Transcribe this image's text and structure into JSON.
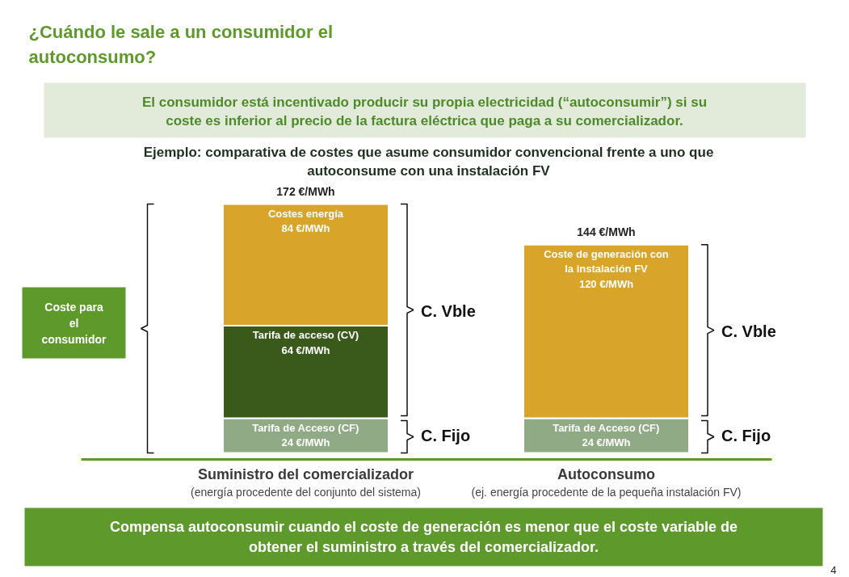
{
  "chart_data": {
    "type": "bar",
    "stacked": true,
    "title": "¿Cuándo le sale a un consumidor el autoconsumo?",
    "subtitle": "El consumidor está incentivado producir su propia electricidad (“autoconsumir”) si su coste es inferior al precio de la factura eléctrica que paga a su comercializador.",
    "categories": [
      "Suministro del comercializador",
      "Autoconsumo"
    ],
    "series": [
      {
        "name": "Tarifa de Acceso (CF)",
        "color": "#8faa84",
        "values": [
          24,
          24
        ],
        "value_labels": [
          "24 €/MWh",
          "24 €/MWh"
        ]
      },
      {
        "name": "Tarifa de acceso (CV)",
        "color": "#3a5a1c",
        "values": [
          64,
          null
        ],
        "value_labels": [
          "64 €/MWh",
          null
        ]
      },
      {
        "name": "Costes energía",
        "color": "#d8a42a",
        "values": [
          84,
          null
        ],
        "value_labels": [
          "84 €/MWh",
          null
        ]
      },
      {
        "name": "Coste de generación con la instalación FV",
        "color": "#d8a42a",
        "values": [
          null,
          120
        ],
        "value_labels": [
          null,
          "120 €/MWh"
        ]
      }
    ],
    "totals": [
      "172 €/MWh",
      "144 €/MWh"
    ],
    "annotations": [
      "Ejemplo: comparativa de costes que asume consumidor convencional frente a uno que autoconsume con una instalación FV",
      "Coste para el consumidor",
      "C. Vble",
      "C. Fijo",
      "C. Vble",
      "C. Fijo",
      "(energía procedente del conjunto del sistema)",
      "(ej. energía procedente de la pequeña instalación FV)",
      "Compensa autoconsumir cuando el coste de generación es menor que el coste variable de obtener el suministro a través del comercializador.",
      "4"
    ]
  }
}
